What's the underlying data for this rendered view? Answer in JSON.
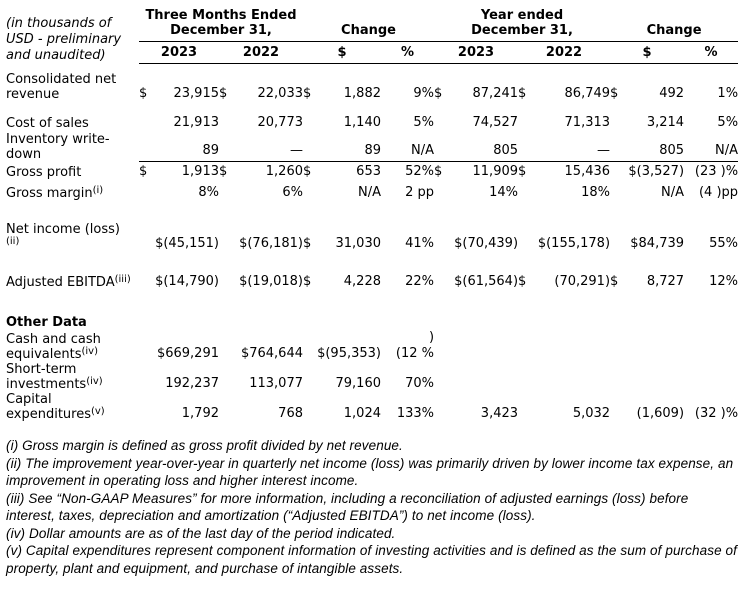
{
  "note": "(in thousands of USD - preliminary and unaudited)",
  "table": {
    "col_groups": [
      {
        "label": "Three Months Ended\nDecember 31,"
      },
      {
        "label": "Change"
      },
      {
        "label": "Year ended\nDecember 31,"
      },
      {
        "label": "Change"
      }
    ],
    "sub_headers": [
      "2023",
      "2022",
      "$",
      "%",
      "2023",
      "2022",
      "$",
      "%"
    ],
    "rows": [
      {
        "label": "Consolidated net revenue",
        "gap": 8,
        "cells": [
          {
            "d": "$",
            "v": "23,915"
          },
          {
            "d": "$",
            "v": "22,033"
          },
          {
            "d": "$",
            "v": "1,882"
          },
          {
            "v": "9%"
          },
          {
            "d": "$",
            "v": "87,241"
          },
          {
            "d": "$",
            "v": "86,749"
          },
          {
            "d": "$",
            "v": "492"
          },
          {
            "v": "1%"
          }
        ]
      },
      {
        "label": "Cost of sales",
        "gap": 13,
        "cells": [
          {
            "v": "21,913"
          },
          {
            "v": "20,773"
          },
          {
            "v": "1,140"
          },
          {
            "v": "5%"
          },
          {
            "v": "74,527"
          },
          {
            "v": "71,313"
          },
          {
            "v": "3,214"
          },
          {
            "v": "5%"
          }
        ]
      },
      {
        "label": "Inventory write-down",
        "gap": 1,
        "rule_below": true,
        "cells": [
          {
            "v": "89"
          },
          {
            "v": "—"
          },
          {
            "v": "89"
          },
          {
            "v": "N/A"
          },
          {
            "v": "805"
          },
          {
            "v": "—"
          },
          {
            "v": "805"
          },
          {
            "v": "N/A"
          }
        ]
      },
      {
        "label": "Gross profit",
        "gap": 2,
        "cells": [
          {
            "d": "$",
            "v": "1,913"
          },
          {
            "d": "$",
            "v": "1,260"
          },
          {
            "d": "$",
            "v": "653"
          },
          {
            "v": "52%"
          },
          {
            "d": "$",
            "v": "11,909"
          },
          {
            "d": "$",
            "v": "15,436"
          },
          {
            "v": "$(3,527)"
          },
          {
            "v": "(23 )%"
          }
        ]
      },
      {
        "label": "Gross margin",
        "sup": "(i)",
        "gap": 5,
        "cells": [
          {
            "v": "8%"
          },
          {
            "v": "6%"
          },
          {
            "v": "N/A"
          },
          {
            "v": "2 pp"
          },
          {
            "v": "14%"
          },
          {
            "v": "18%"
          },
          {
            "v": "N/A"
          },
          {
            "v": "(4 )pp"
          }
        ]
      },
      {
        "label": "Net income (loss)",
        "sup": "(ii)",
        "sup_break": true,
        "gap": 21,
        "cells": [
          {
            "v": "$(45,151)"
          },
          {
            "v": "$(76,181)"
          },
          {
            "d": "$",
            "v": "31,030"
          },
          {
            "v": "41%"
          },
          {
            "v": "$(70,439)"
          },
          {
            "v": "$(155,178)"
          },
          {
            "v": "$84,739"
          },
          {
            "v": "55%"
          }
        ]
      },
      {
        "label": "Adjusted EBITDA",
        "sup": "(iii)",
        "gap": 22,
        "cells": [
          {
            "v": "$(14,790)"
          },
          {
            "v": "$(19,018)"
          },
          {
            "d": "$",
            "v": "4,228"
          },
          {
            "v": "22%"
          },
          {
            "v": "$(61,564)"
          },
          {
            "d": "$",
            "v": "(70,291)"
          },
          {
            "d": "$",
            "v": "8,727"
          },
          {
            "v": "12%"
          }
        ]
      },
      {
        "type": "section",
        "label": "Other Data",
        "gap": 25
      },
      {
        "label": "Cash and cash equivalents",
        "sup": "(iv)",
        "gap": 0,
        "cells": [
          {
            "v": "$669,291"
          },
          {
            "v": "$764,644"
          },
          {
            "v": "$(95,353)"
          },
          {
            "v": ")\n(12 %"
          },
          null,
          null,
          null,
          null
        ]
      },
      {
        "label": "Short-term investments",
        "sup": "(iv)",
        "gap": 0,
        "cells": [
          {
            "v": "192,237"
          },
          {
            "v": "113,077"
          },
          {
            "v": "79,160"
          },
          {
            "v": "70%"
          },
          null,
          null,
          null,
          null
        ]
      },
      {
        "label": "Capital expenditures",
        "sup": "(v)",
        "gap": 0,
        "cells": [
          {
            "v": "1,792"
          },
          {
            "v": "768"
          },
          {
            "v": "1,024"
          },
          {
            "v": "133%"
          },
          {
            "v": "3,423"
          },
          {
            "v": "5,032"
          },
          {
            "v": "(1,609)"
          },
          {
            "v": "(32 )%"
          }
        ]
      }
    ]
  },
  "footnotes": [
    "(i) Gross margin is defined as gross profit divided by net revenue.",
    "(ii) The improvement year-over-year in quarterly net income (loss) was primarily driven by lower income tax expense, an improvement in operating loss and higher interest income.",
    "(iii) See “Non-GAAP Measures” for more information, including a reconciliation of adjusted earnings (loss) before interest, taxes, depreciation and amortization (“Adjusted EBITDA”) to net income (loss).",
    "(iv) Dollar amounts are as of the last day of the period indicated.",
    "(v) Capital expenditures represent component information of investing activities and is defined as the sum of purchase of property, plant and equipment, and purchase of intangible assets."
  ]
}
